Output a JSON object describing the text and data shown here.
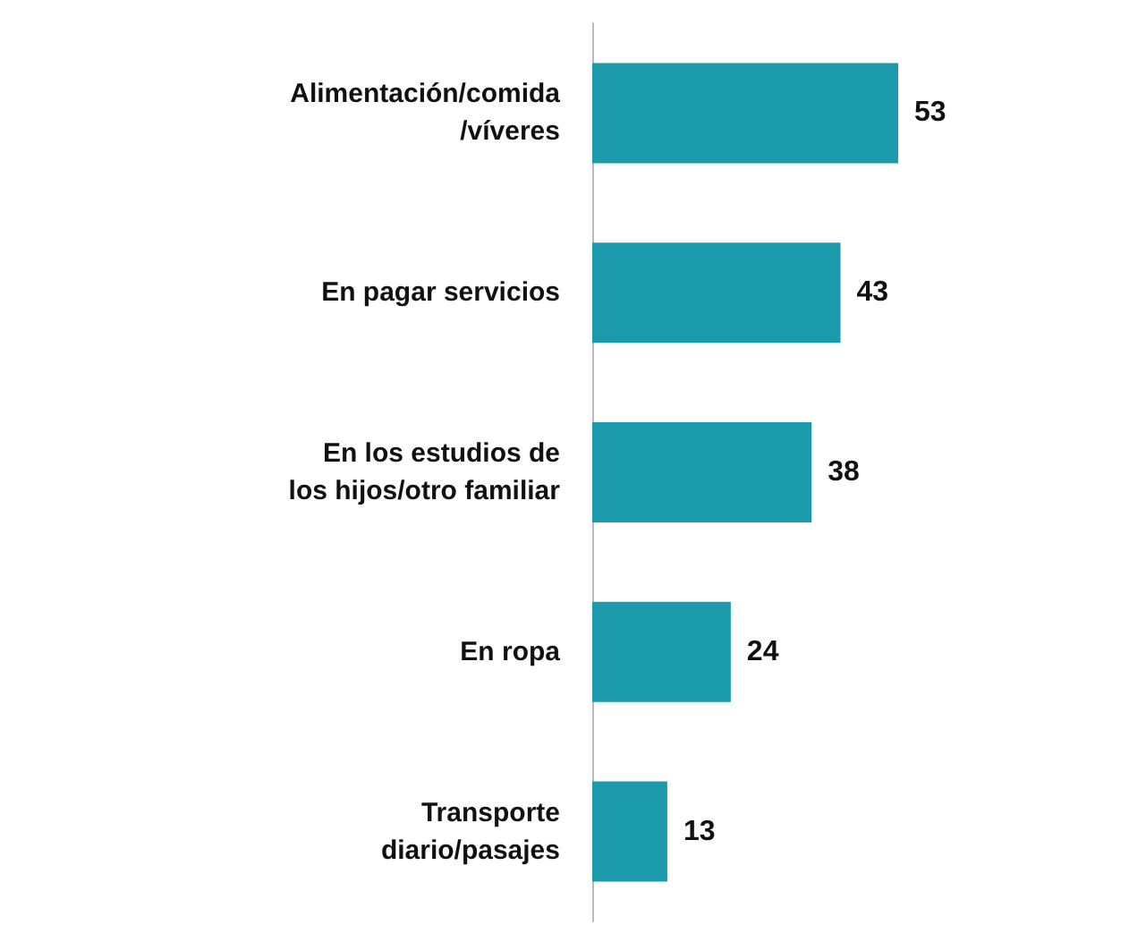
{
  "chart_data": {
    "type": "bar",
    "orientation": "horizontal",
    "categories": [
      "Alimentación/comida\n/víveres",
      "En pagar servicios",
      "En los estudios de\nlos hijos/otro familiar",
      "En ropa",
      "Transporte\ndiario/pasajes"
    ],
    "values": [
      53,
      43,
      38,
      24,
      13
    ],
    "color": "#1a9aab",
    "data_labels": true
  }
}
